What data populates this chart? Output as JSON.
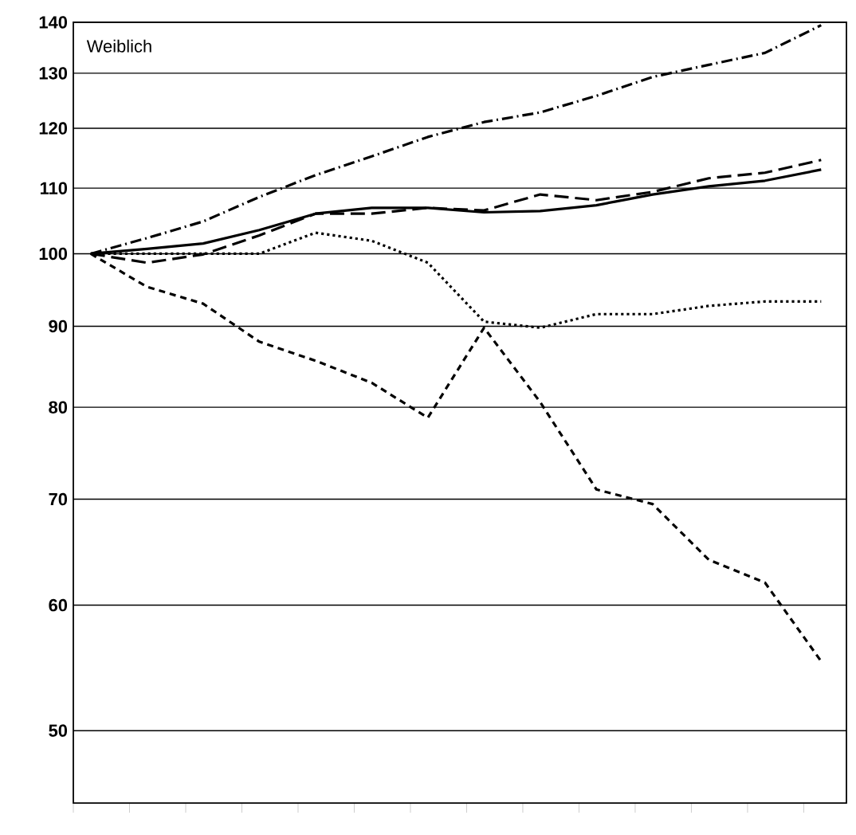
{
  "chart_data": {
    "type": "line",
    "title": "Weiblich",
    "categories": [
      null,
      null,
      null,
      null,
      null,
      null,
      null,
      null,
      null,
      null,
      null,
      null,
      null,
      null
    ],
    "ylim": [
      45,
      140
    ],
    "yticks": [
      50,
      60,
      70,
      80,
      90,
      100,
      110,
      120,
      130,
      140
    ],
    "log": "y",
    "grid": "y",
    "tick_labels": "y",
    "series": [
      {
        "color": "#000000",
        "line_style": "dashdot",
        "values": [
          100,
          102.3,
          104.8,
          108.6,
          112.1,
          115.2,
          118.5,
          121.1,
          122.8,
          125.8,
          129.3,
          131.6,
          133.9,
          139.4
        ]
      },
      {
        "color": "#000000",
        "line_style": "dashed",
        "values": [
          100,
          98.7,
          99.9,
          102.7,
          106.0,
          106.0,
          106.9,
          106.5,
          109.0,
          108.1,
          109.4,
          111.6,
          112.5,
          114.6
        ]
      },
      {
        "color": "#000000",
        "line_style": "solid",
        "values": [
          100,
          100.7,
          101.5,
          103.5,
          106.0,
          106.9,
          106.9,
          106.2,
          106.4,
          107.3,
          109.0,
          110.3,
          111.2,
          113.0
        ]
      },
      {
        "color": "#000000",
        "line_style": "dotted",
        "values": [
          100,
          100,
          100,
          100,
          103.1,
          101.9,
          98.7,
          90.6,
          89.8,
          91.6,
          91.6,
          92.7,
          93.3,
          93.3
        ]
      },
      {
        "color": "#000000",
        "line_style": "densely dashed",
        "values": [
          100,
          95.3,
          93.0,
          88.0,
          85.6,
          82.9,
          78.8,
          89.8,
          80.6,
          71.0,
          69.5,
          64.1,
          62.0,
          55.3
        ]
      }
    ]
  }
}
